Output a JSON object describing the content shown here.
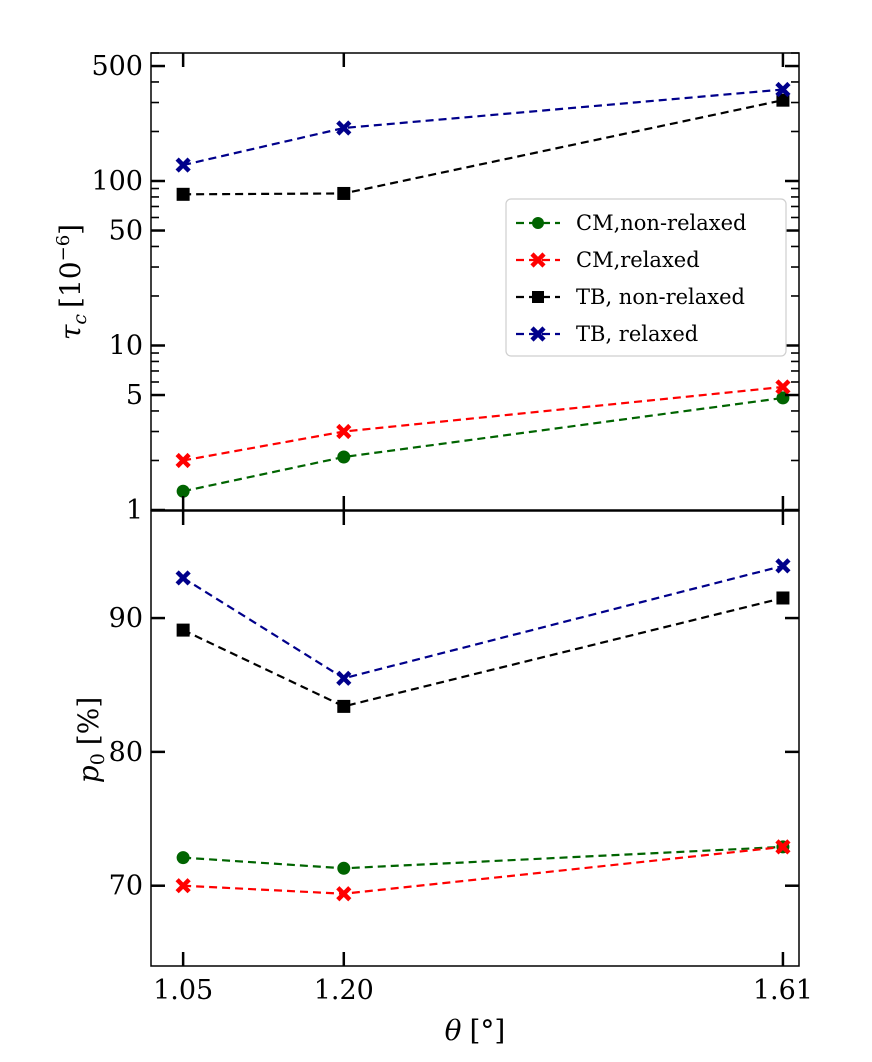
{
  "chart_data": [
    {
      "type": "line",
      "panel": "top",
      "yscale": "log",
      "ylim": [
        1,
        600
      ],
      "ylabel_symbol": "τ",
      "ylabel_sub": "c",
      "ylabel_unit_pre": "[10",
      "ylabel_unit_exp": "−6",
      "ylabel_unit_post": "]",
      "yticks": [
        1,
        5,
        10,
        50,
        100,
        500
      ],
      "ytick_labels": [
        "1",
        "5",
        "10",
        "50",
        "100",
        "500"
      ],
      "x": [
        1.05,
        1.2,
        1.61
      ],
      "xlim": [
        1.02,
        1.625
      ],
      "series": [
        {
          "name": "CM,non-relaxed",
          "color": "#006400",
          "marker": "circle",
          "values": [
            1.3,
            2.1,
            4.8
          ]
        },
        {
          "name": "CM,relaxed",
          "color": "#ff0000",
          "marker": "x",
          "values": [
            2.0,
            3.0,
            5.6
          ]
        },
        {
          "name": "TB, non-relaxed",
          "color": "#000000",
          "marker": "square",
          "values": [
            83,
            84,
            310
          ]
        },
        {
          "name": "TB, relaxed",
          "color": "#00008b",
          "marker": "x",
          "values": [
            125,
            210,
            360
          ]
        }
      ],
      "legend": "center-right"
    },
    {
      "type": "line",
      "panel": "bottom",
      "yscale": "linear",
      "ylim": [
        64,
        98
      ],
      "ylabel_symbol": "p",
      "ylabel_sub": "0",
      "ylabel_unit": "[%]",
      "yticks": [
        70,
        80,
        90
      ],
      "ytick_labels": [
        "70",
        "80",
        "90"
      ],
      "x": [
        1.05,
        1.2,
        1.61
      ],
      "xlim": [
        1.02,
        1.625
      ],
      "xtick_labels": [
        "1.05",
        "1.20",
        "1.61"
      ],
      "xlabel_symbol": "θ",
      "xlabel_unit": "[°]",
      "series": [
        {
          "name": "CM,non-relaxed",
          "color": "#006400",
          "marker": "circle",
          "values": [
            72.1,
            71.3,
            72.9
          ]
        },
        {
          "name": "CM,relaxed",
          "color": "#ff0000",
          "marker": "x",
          "values": [
            70.0,
            69.4,
            72.9
          ]
        },
        {
          "name": "TB, non-relaxed",
          "color": "#000000",
          "marker": "square",
          "values": [
            89.1,
            83.4,
            91.5
          ]
        },
        {
          "name": "TB, relaxed",
          "color": "#00008b",
          "marker": "x",
          "values": [
            93.0,
            85.5,
            93.9
          ]
        }
      ]
    }
  ]
}
